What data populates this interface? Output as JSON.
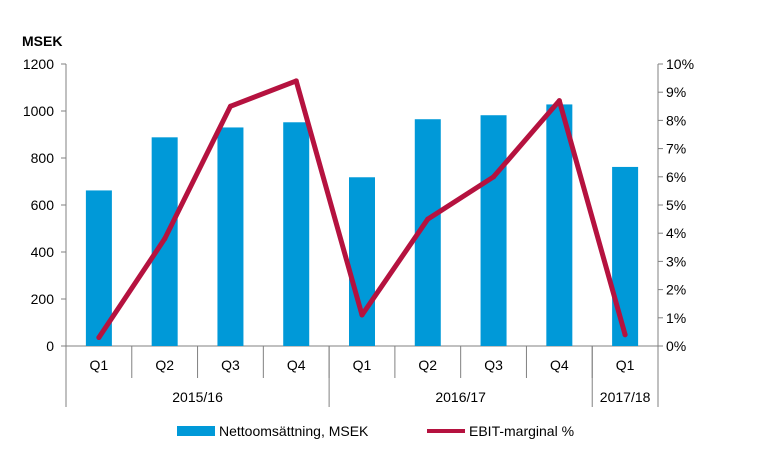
{
  "chart_data": {
    "type": "bar",
    "unit_label": "MSEK",
    "categories": [
      "Q1",
      "Q2",
      "Q3",
      "Q4",
      "Q1",
      "Q2",
      "Q3",
      "Q4",
      "Q1"
    ],
    "groups": [
      {
        "label": "2015/16",
        "span": 4
      },
      {
        "label": "2016/17",
        "span": 4
      },
      {
        "label": "2017/18",
        "span": 1
      }
    ],
    "series": [
      {
        "name": "Nettoomsättning, MSEK",
        "type": "bar",
        "axis": "left",
        "color": "#0099d8",
        "values": [
          662,
          888,
          930,
          952,
          718,
          965,
          982,
          1028,
          762
        ]
      },
      {
        "name": "EBIT-marginal %",
        "type": "line",
        "axis": "right",
        "color": "#b5123f",
        "values": [
          0.3,
          3.8,
          8.5,
          9.4,
          1.1,
          4.5,
          6.0,
          8.7,
          0.4
        ]
      }
    ],
    "y_left": {
      "min": 0,
      "max": 1200,
      "ticks": [
        "0",
        "200",
        "400",
        "600",
        "800",
        "1000",
        "1200"
      ]
    },
    "y_right": {
      "min": 0,
      "max": 10,
      "ticks": [
        "0%",
        "1%",
        "2%",
        "3%",
        "4%",
        "5%",
        "6%",
        "7%",
        "8%",
        "9%",
        "10%"
      ]
    },
    "grid": false,
    "legend_position": "bottom"
  }
}
